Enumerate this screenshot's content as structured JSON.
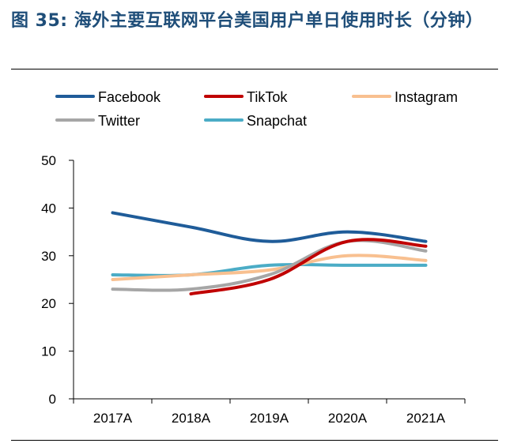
{
  "title": "图 35: 海外主要互联网平台美国用户单日使用时长（分钟）",
  "chart_data": {
    "type": "line",
    "title": "",
    "xlabel": "",
    "ylabel": "",
    "categories": [
      "2017A",
      "2018A",
      "2019A",
      "2020A",
      "2021A"
    ],
    "ylim": [
      0,
      50
    ],
    "yticks": [
      0,
      10,
      20,
      30,
      40,
      50
    ],
    "grid": false,
    "legend_position": "top",
    "series": [
      {
        "name": "Facebook",
        "color": "#1f5c99",
        "values": [
          39,
          36,
          33,
          35,
          33
        ]
      },
      {
        "name": "TikTok",
        "color": "#c00000",
        "values": [
          null,
          22,
          25,
          33,
          32
        ]
      },
      {
        "name": "Instagram",
        "color": "#f8c090",
        "values": [
          25,
          26,
          27,
          30,
          29
        ]
      },
      {
        "name": "Twitter",
        "color": "#a6a6a6",
        "values": [
          23,
          23,
          26,
          33,
          31
        ]
      },
      {
        "name": "Snapchat",
        "color": "#4bacc6",
        "values": [
          26,
          26,
          28,
          28,
          28
        ]
      }
    ]
  }
}
